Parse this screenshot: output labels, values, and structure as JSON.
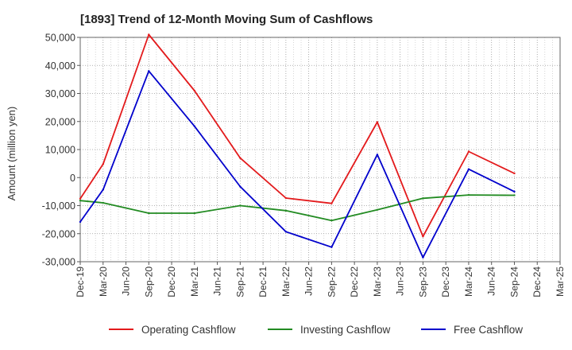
{
  "chart_data": {
    "type": "line",
    "title": "[1893]  Trend of 12-Month Moving Sum of Cashflows",
    "xlabel": "",
    "ylabel": "Amount (million yen)",
    "ylim": [
      -30000,
      50000
    ],
    "yticks": [
      -30000,
      -20000,
      -10000,
      0,
      10000,
      20000,
      30000,
      40000,
      50000
    ],
    "ytick_labels": [
      "-30,000",
      "-20,000",
      "-10,000",
      "0",
      "10,000",
      "20,000",
      "30,000",
      "40,000",
      "50,000"
    ],
    "categories": [
      "Dec-19",
      "Mar-20",
      "Jun-20",
      "Sep-20",
      "Dec-20",
      "Mar-21",
      "Jun-21",
      "Sep-21",
      "Dec-21",
      "Mar-22",
      "Jun-22",
      "Sep-22",
      "Dec-22",
      "Mar-23",
      "Jun-23",
      "Sep-23",
      "Dec-23",
      "Mar-24",
      "Jun-24",
      "Sep-24",
      "Dec-24",
      "Mar-25"
    ],
    "grid": true,
    "legend_position": "bottom",
    "series": [
      {
        "name": "Operating Cashflow",
        "color": "#e31a1c",
        "values": [
          -7500,
          4800,
          null,
          51000,
          null,
          31000,
          null,
          7000,
          null,
          -7300,
          null,
          -9200,
          null,
          19800,
          null,
          -21000,
          null,
          9300,
          null,
          1500,
          null,
          null
        ]
      },
      {
        "name": "Investing Cashflow",
        "color": "#228b22",
        "values": [
          -8200,
          -9000,
          null,
          -12700,
          null,
          -12700,
          null,
          -10000,
          null,
          -11800,
          null,
          -15300,
          null,
          -11500,
          null,
          -7400,
          null,
          -6200,
          null,
          -6300,
          null,
          null
        ]
      },
      {
        "name": "Free Cashflow",
        "color": "#0000cc",
        "values": [
          -15800,
          -4300,
          null,
          38000,
          null,
          18300,
          null,
          -3200,
          null,
          -19300,
          null,
          -24800,
          null,
          8200,
          null,
          -28500,
          null,
          3000,
          null,
          -5000,
          null,
          null
        ]
      }
    ]
  }
}
